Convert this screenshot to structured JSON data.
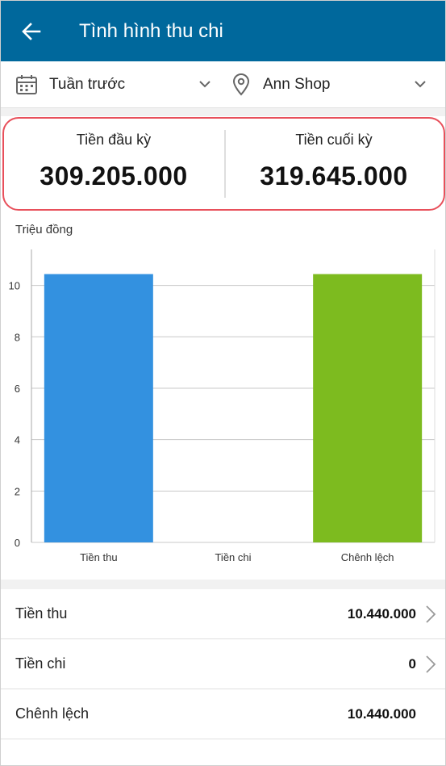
{
  "header": {
    "title": "Tình hình thu chi"
  },
  "filters": {
    "period": "Tuần trước",
    "shop": "Ann Shop"
  },
  "summary": {
    "opening_label": "Tiền đầu kỳ",
    "opening_value": "309.205.000",
    "closing_label": "Tiền cuối kỳ",
    "closing_value": "319.645.000"
  },
  "chart_data": {
    "type": "bar",
    "ylabel": "Triệu đồng",
    "categories": [
      "Tiền thu",
      "Tiền chi",
      "Chênh lệch"
    ],
    "values": [
      10.44,
      0,
      10.44
    ],
    "colors": [
      "#3391e0",
      "#3391e0",
      "#7dbb1f"
    ],
    "ylim": [
      0,
      11.4
    ],
    "yticks": [
      "0",
      "2",
      "4",
      "6",
      "8",
      "10"
    ],
    "grid": true
  },
  "rows": [
    {
      "label": "Tiền thu",
      "value": "10.440.000",
      "chevron": true
    },
    {
      "label": "Tiền chi",
      "value": "0",
      "chevron": true
    },
    {
      "label": "Chênh lệch",
      "value": "10.440.000",
      "chevron": false
    }
  ],
  "icons": {
    "back": "arrow-left-icon",
    "calendar": "calendar-icon",
    "location": "location-pin-icon",
    "dropdown": "chevron-down-icon",
    "row": "chevron-right-icon"
  }
}
